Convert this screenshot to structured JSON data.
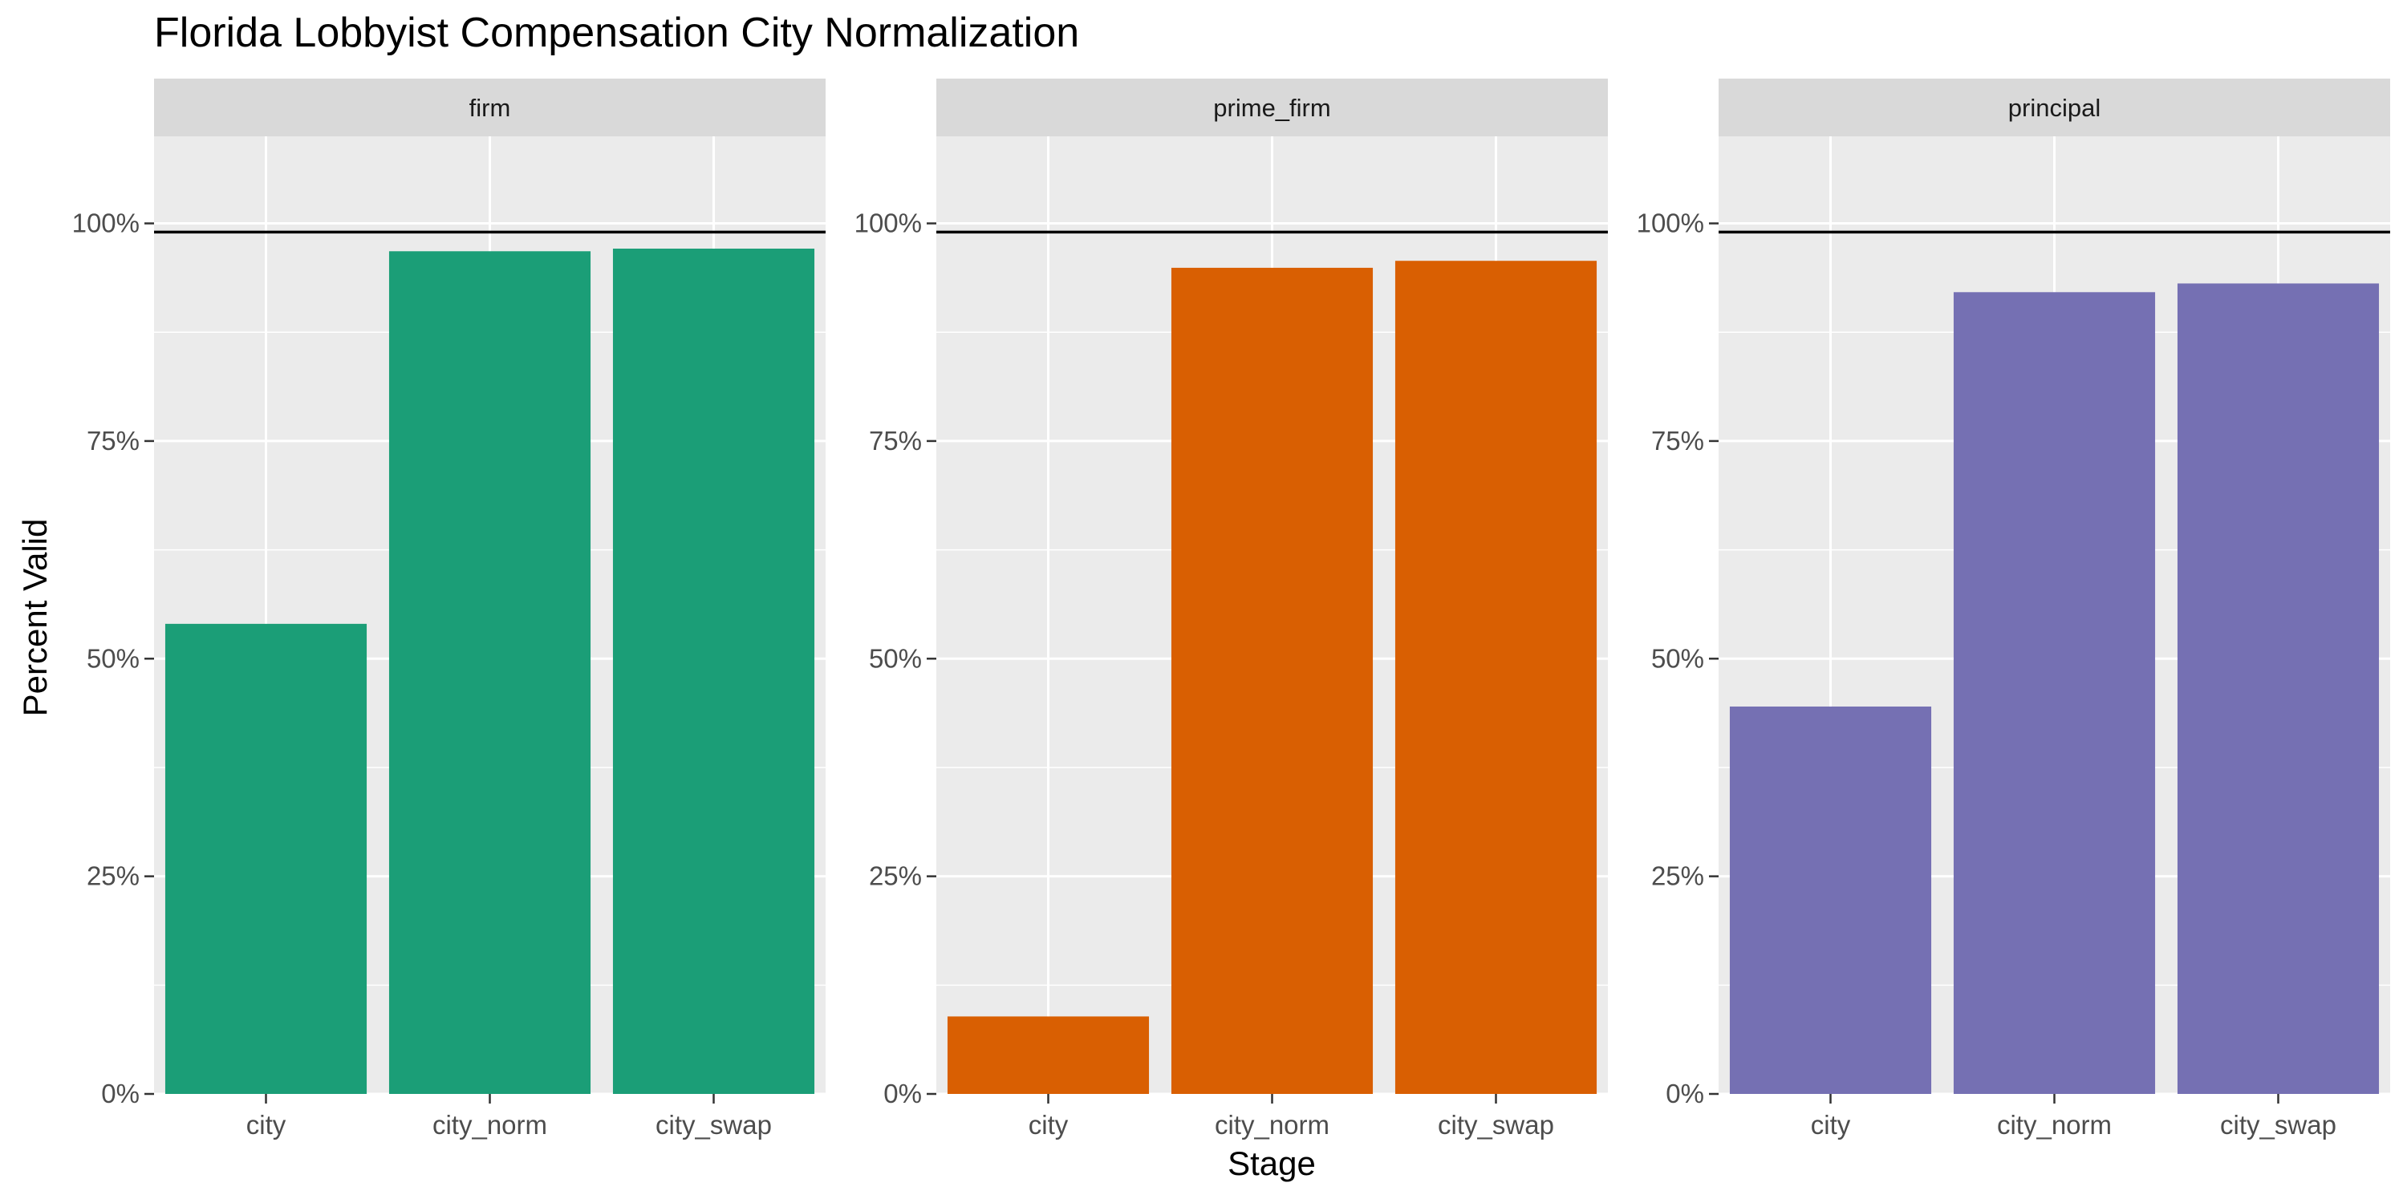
{
  "chart_data": {
    "type": "bar",
    "title": "Florida Lobbyist Compensation City Normalization",
    "xlabel": "Stage",
    "ylabel": "Percent Valid",
    "ylim": [
      0,
      1.1
    ],
    "y_ticks": [
      0,
      0.25,
      0.5,
      0.75,
      1.0
    ],
    "y_tick_labels": [
      "0%",
      "25%",
      "50%",
      "75%",
      "100%"
    ],
    "reference_line": 0.99,
    "grid": true,
    "legend": "none",
    "categories": [
      "city",
      "city_norm",
      "city_swap"
    ],
    "facets": [
      {
        "name": "firm",
        "color": "#1B9E77",
        "values": [
          0.54,
          0.968,
          0.971
        ]
      },
      {
        "name": "prime_firm",
        "color": "#D95F02",
        "values": [
          0.089,
          0.949,
          0.957
        ]
      },
      {
        "name": "principal",
        "color": "#7570B3",
        "values": [
          0.445,
          0.921,
          0.931
        ]
      }
    ]
  }
}
